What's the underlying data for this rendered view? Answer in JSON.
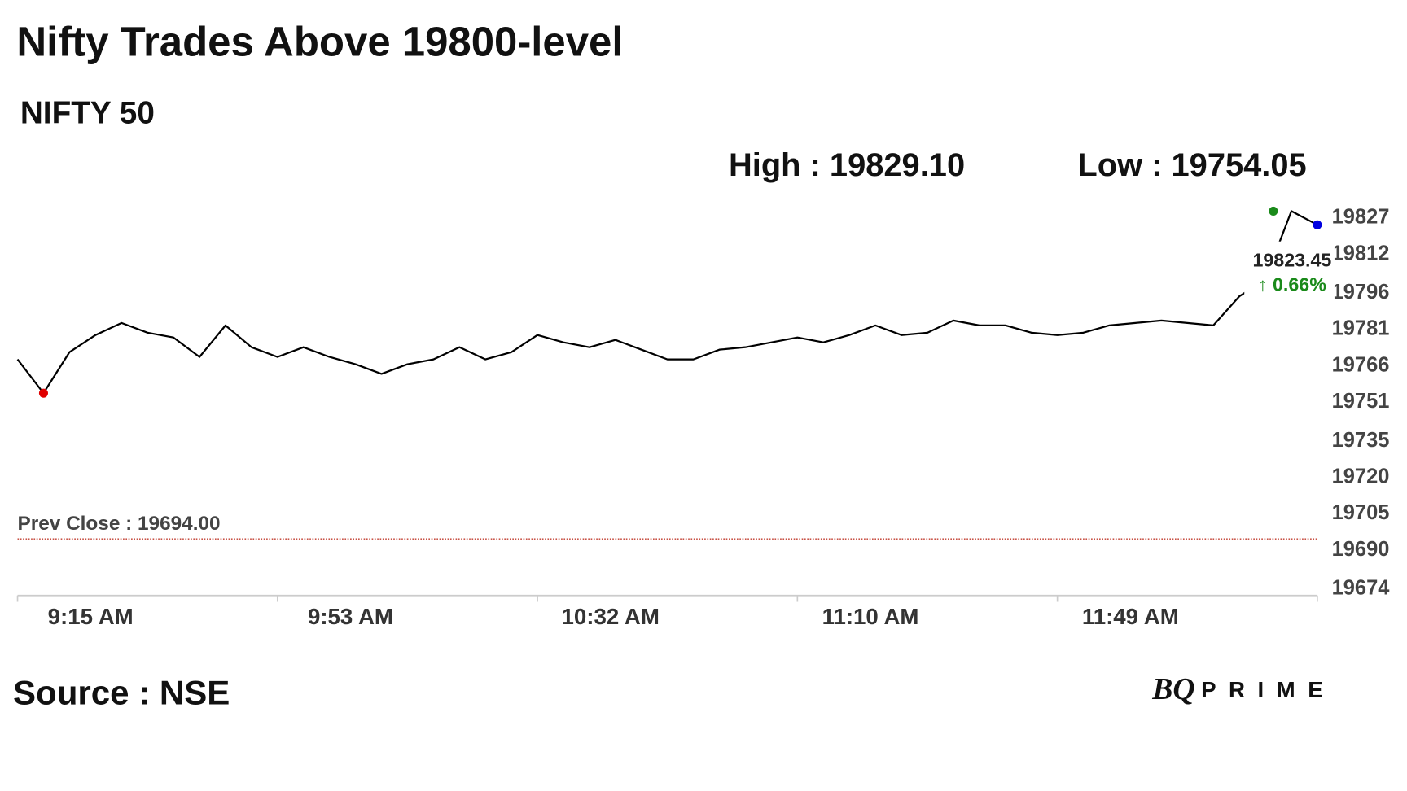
{
  "chart_data": {
    "type": "line",
    "title": "Nifty Trades Above 19800-level",
    "subtitle": "NIFTY 50",
    "high_label": "High : 19829.10",
    "low_label": "Low : 19754.05",
    "categories": [
      "9:15 AM",
      null,
      null,
      null,
      null,
      null,
      null,
      null,
      null,
      null,
      "9:53 AM",
      null,
      null,
      null,
      null,
      null,
      null,
      null,
      null,
      null,
      "10:32 AM",
      null,
      null,
      null,
      null,
      null,
      null,
      null,
      null,
      null,
      "11:10 AM",
      null,
      null,
      null,
      null,
      null,
      null,
      null,
      null,
      null,
      "11:49 AM",
      null,
      null,
      null,
      null,
      null,
      null,
      null,
      null,
      null,
      null
    ],
    "series": [
      {
        "name": "NIFTY 50",
        "color": "#000000",
        "values": [
          19768,
          19754.05,
          19771,
          19778,
          19783,
          19779,
          19777,
          19769,
          19782,
          19773,
          19769,
          19773,
          19769,
          19766,
          19762,
          19766,
          19768,
          19773,
          19768,
          19771,
          19778,
          19775,
          19773,
          19776,
          19772,
          19768,
          19768,
          19772,
          19773,
          19775,
          19777,
          19775,
          19778,
          19782,
          19778,
          19779,
          19784,
          19782,
          19782,
          19779,
          19778,
          19779,
          19782,
          19783,
          19784,
          19783,
          19782,
          19794,
          19801,
          19829.1,
          19823.45
        ]
      }
    ],
    "marker_colors": {
      "low": "#e00000",
      "high": "#1a8a1a",
      "last": "#0000e0"
    },
    "last_price_label": "19823.45",
    "change_label": "↑ 0.66%",
    "change_color": "#1a8a1a",
    "prev_close": 19694,
    "prev_close_label": "Prev Close : 19694.00",
    "prev_close_color": "#c0392b",
    "ylim": [
      19674,
      19827
    ],
    "yticks": [
      19674,
      19690,
      19705,
      19720,
      19735,
      19751,
      19766,
      19781,
      19796,
      19812,
      19827
    ],
    "grid": false,
    "source": "Source : NSE",
    "brand": {
      "mark": "BQ",
      "word": "PRIME"
    }
  }
}
